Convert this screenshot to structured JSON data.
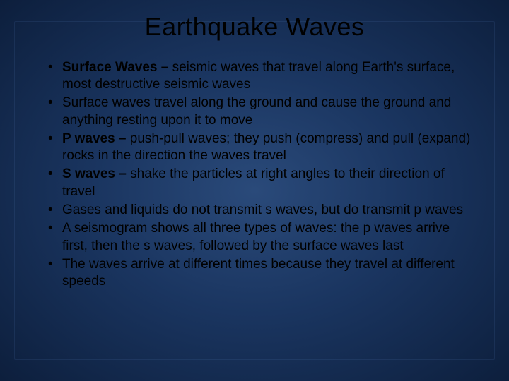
{
  "slide": {
    "title": "Earthquake Waves",
    "title_fontsize": 36,
    "title_color": "#000000",
    "body_fontsize": 19,
    "body_color": "#000000",
    "background": {
      "type": "radial-gradient",
      "center_color": "#2a4a7a",
      "mid_color": "#0d1f3d",
      "outer_color": "#000000"
    },
    "bullets": [
      {
        "bold": "Surface Waves – ",
        "rest": "seismic waves that travel along Earth's surface, most destructive seismic waves"
      },
      {
        "bold": "",
        "rest": "Surface waves travel along the ground and cause the ground and anything resting upon it to move"
      },
      {
        "bold": "P waves – ",
        "rest": "push-pull waves; they push (compress) and pull (expand) rocks in the direction the waves travel"
      },
      {
        "bold": "S waves – ",
        "rest": "shake the particles at right angles to their direction of travel"
      },
      {
        "bold": "",
        "rest": "Gases and liquids do not transmit s waves, but do transmit p waves"
      },
      {
        "bold": "",
        "rest": "A seismogram shows all three types of waves: the p waves arrive first, then the s waves, followed by the surface waves last"
      },
      {
        "bold": "",
        "rest": "The waves arrive at different times because they travel at different speeds"
      }
    ]
  }
}
